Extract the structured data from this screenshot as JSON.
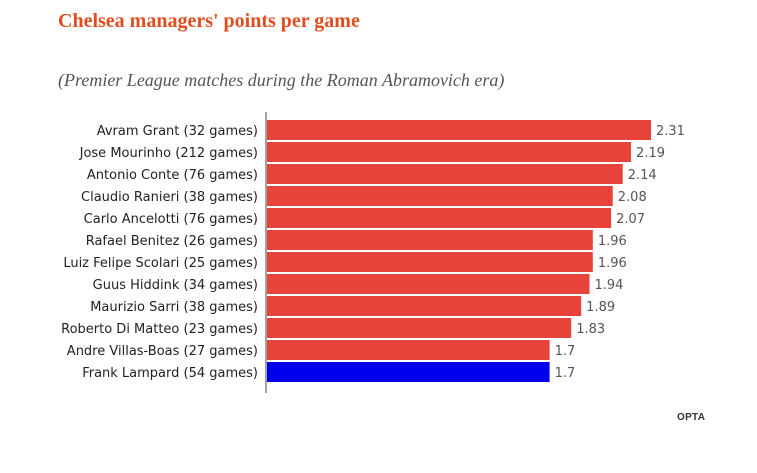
{
  "title": "Chelsea managers' points per game",
  "subtitle": "(Premier League matches during the Roman Abramovich era)",
  "source": "OPTA",
  "chart_data": {
    "type": "bar",
    "orientation": "horizontal",
    "categories": [
      "Avram Grant (32 games)",
      "Jose Mourinho (212 games)",
      "Antonio Conte (76 games)",
      "Claudio Ranieri (38 games)",
      "Carlo Ancelotti (76 games)",
      "Rafael Benitez (26 games)",
      "Luiz Felipe Scolari (25 games)",
      "Guus Hiddink (34 games)",
      "Maurizio Sarri (38 games)",
      "Roberto Di Matteo (23 games)",
      "Andre Villas-Boas (27 games)",
      "Frank Lampard (54 games)"
    ],
    "values": [
      2.31,
      2.19,
      2.14,
      2.08,
      2.07,
      1.96,
      1.96,
      1.94,
      1.89,
      1.83,
      1.7,
      1.7
    ],
    "value_labels": [
      "2.31",
      "2.19",
      "2.14",
      "2.08",
      "2.07",
      "1.96",
      "1.96",
      "1.94",
      "1.89",
      "1.83",
      "1.7",
      "1.7"
    ],
    "colors": {
      "default": "#e8433a",
      "highlight": "#0000ee"
    },
    "highlight_category": "Frank Lampard (54 games)",
    "xlim": [
      0,
      2.31
    ],
    "grid": false
  }
}
